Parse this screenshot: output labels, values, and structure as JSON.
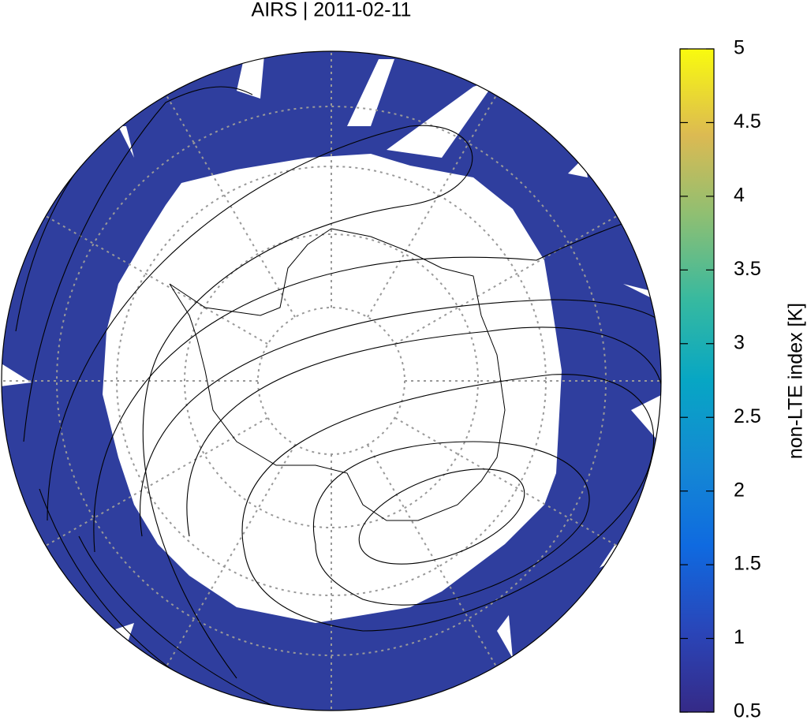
{
  "title": "AIRS | 2011-02-11",
  "colorbar": {
    "label": "non-LTE index [K]",
    "lim": [
      0.5,
      5
    ],
    "ticks": [
      0.5,
      1,
      1.5,
      2,
      2.5,
      3,
      3.5,
      4,
      4.5,
      5
    ]
  }
}
